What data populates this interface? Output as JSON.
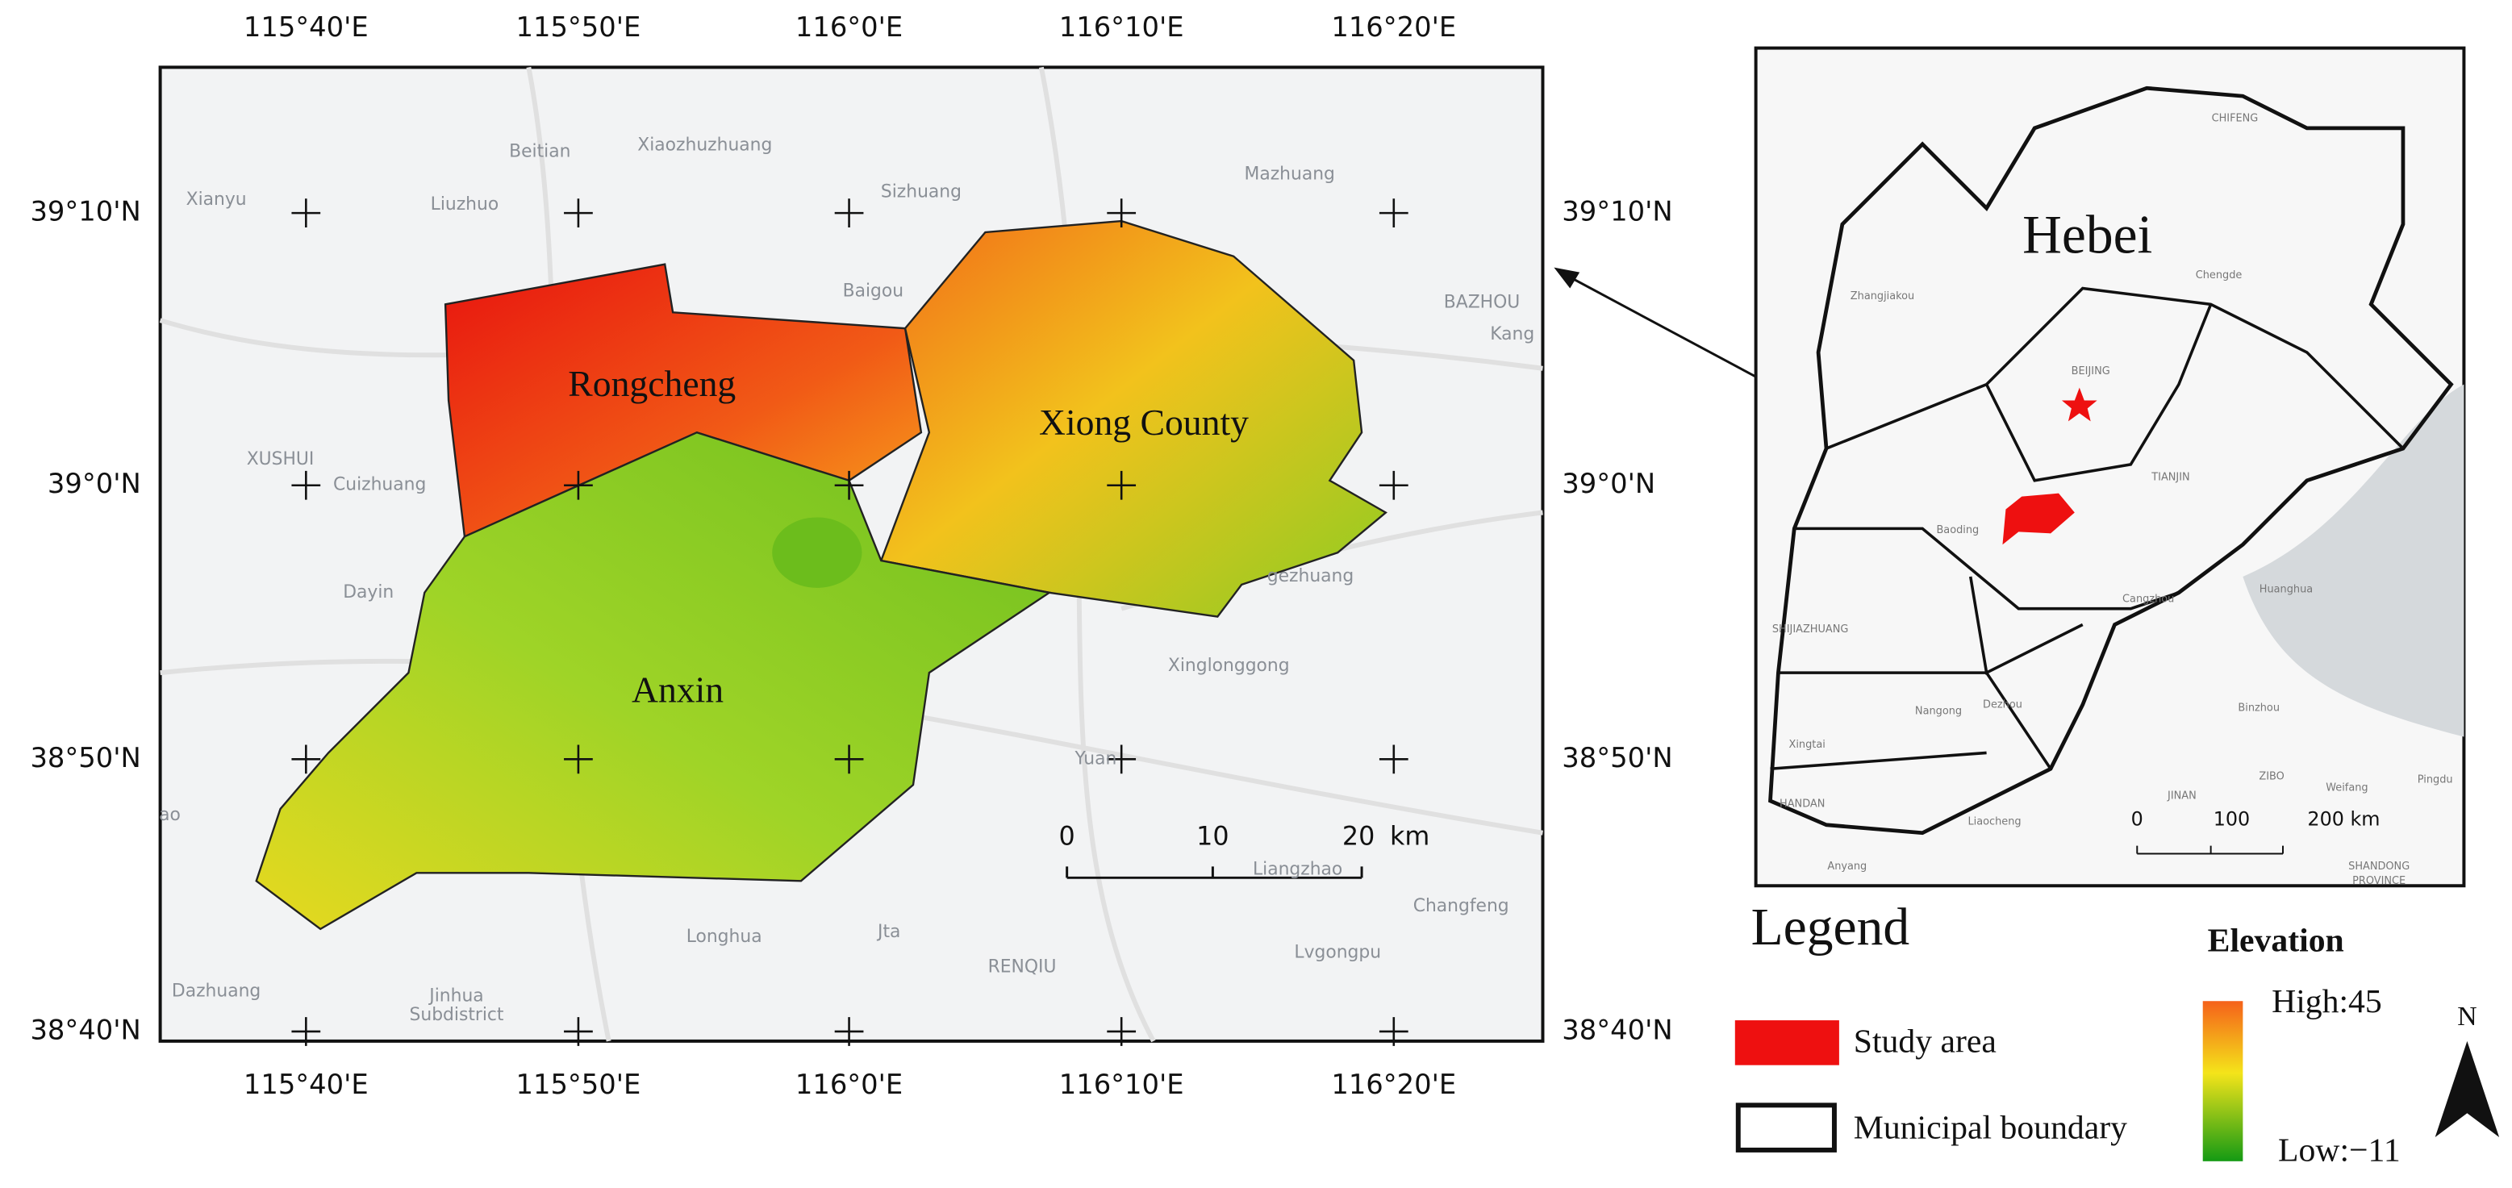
{
  "main_map": {
    "lon_labels": [
      "115°40'E",
      "115°50'E",
      "116°0'E",
      "116°10'E",
      "116°20'E"
    ],
    "lat_labels": [
      "39°10'N",
      "39°0'N",
      "38°50'N",
      "38°40'N"
    ],
    "places": [
      "Beitian",
      "Xiaozhuzhuang",
      "Xianyu",
      "Liuzhuo",
      "Sizhuang",
      "Mazhuang",
      "Baigou",
      "BAZHOU",
      "Kang",
      "XUSHUI",
      "Cuizhuang",
      "Dayin",
      "gezhuang",
      "Xinglonggong",
      "Yuan",
      "ao",
      "Liangzhao",
      "Changfeng",
      "Longhua",
      "Jta",
      "RENQIU",
      "Lvgongpu",
      "Dazhuang",
      "Jinhua",
      "Subdistrict"
    ],
    "counties": [
      "Rongcheng",
      "Xiong County",
      "Anxin"
    ],
    "scale_bar": [
      "0",
      "10",
      "20",
      "km"
    ]
  },
  "inset_map": {
    "region_label": "Hebei",
    "places": [
      "CHIFENG",
      "Chengde",
      "Zhangjiakou",
      "BEIJING",
      "TIANJIN",
      "Baoding",
      "SHIJIAZHUANG",
      "Cangzhou",
      "Huanghua",
      "Nangong",
      "Xingtai",
      "Dezhou",
      "Binzhou",
      "HANDAN",
      "JINAN",
      "ZIBO",
      "Weifang",
      "Liaocheng",
      "Anyang",
      "Pingdu",
      "SHANDONG",
      "PROVINCE"
    ],
    "scale_bar": [
      "0",
      "100",
      "200 km"
    ]
  },
  "legend": {
    "title": "Legend",
    "items": [
      "Study area",
      "Municipal boundary"
    ],
    "elevation_title": "Elevation",
    "high_label": "High:45",
    "low_label": "Low:−11",
    "north": "N"
  }
}
